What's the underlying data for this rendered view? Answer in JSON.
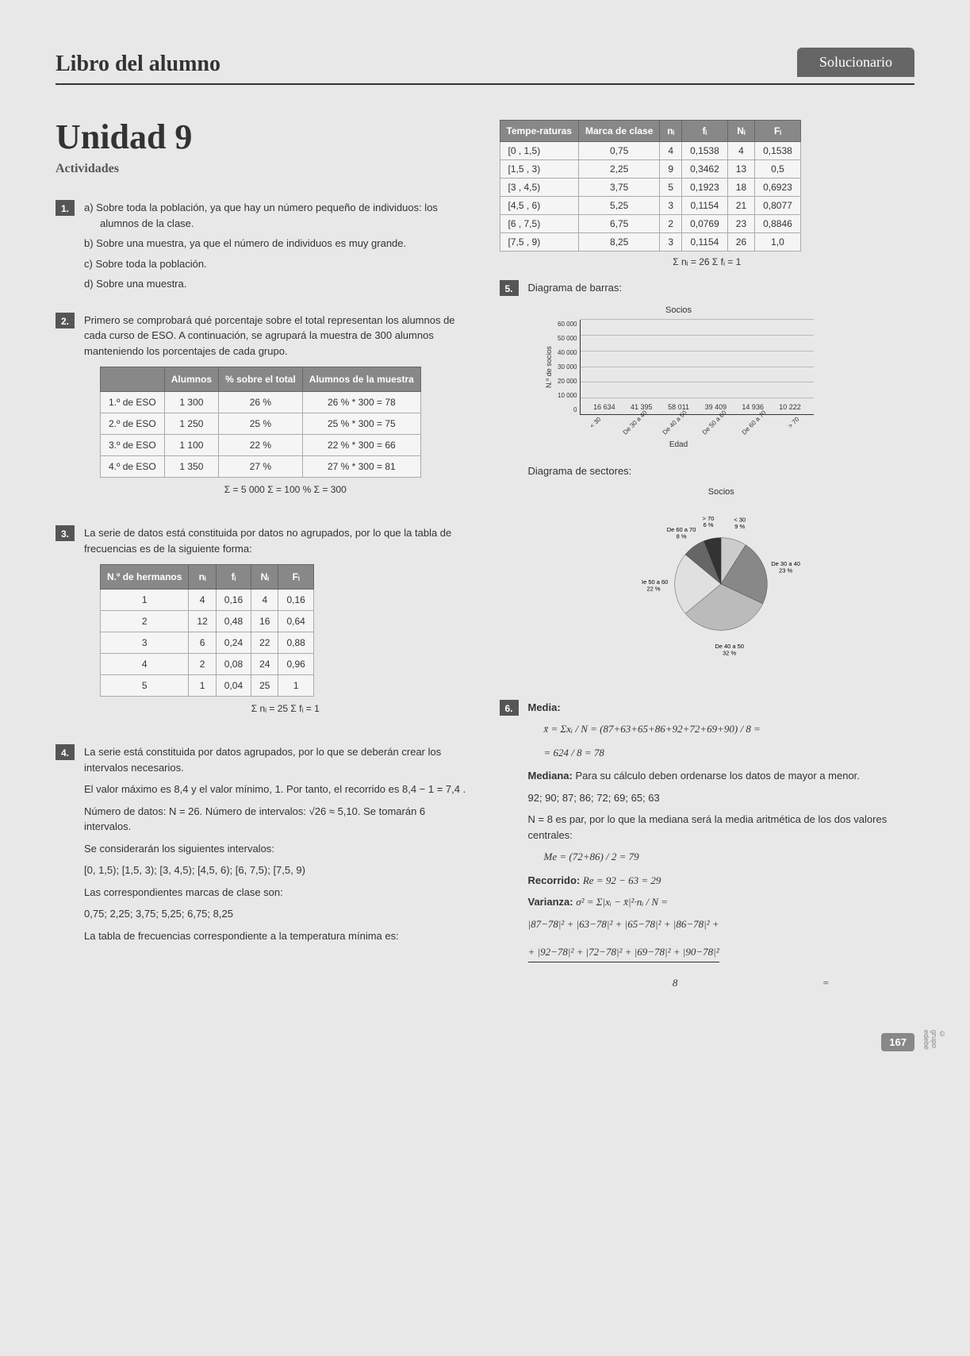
{
  "header": {
    "title": "Libro del alumno",
    "badge": "Solucionario"
  },
  "unit": {
    "title": "Unidad 9",
    "subtitle": "Actividades"
  },
  "ex1": {
    "num": "1.",
    "a": "a) Sobre toda la población, ya que hay un número pequeño de individuos: los alumnos de la clase.",
    "b": "b) Sobre una muestra, ya que el número de individuos es muy grande.",
    "c": "c) Sobre toda la población.",
    "d": "d) Sobre una muestra."
  },
  "ex2": {
    "num": "2.",
    "intro": "Primero se comprobará qué porcentaje sobre el total representan los alumnos de cada curso de ESO. A continuación, se agrupará la muestra de 300 alumnos manteniendo los porcentajes de cada grupo.",
    "table": {
      "headers": [
        "",
        "Alumnos",
        "% sobre el total",
        "Alumnos de la muestra"
      ],
      "rows": [
        [
          "1.º de ESO",
          "1 300",
          "26 %",
          "26 % * 300 = 78"
        ],
        [
          "2.º de ESO",
          "1 250",
          "25 %",
          "25 % * 300 = 75"
        ],
        [
          "3.º de ESO",
          "1 100",
          "22 %",
          "22 % * 300 = 66"
        ],
        [
          "4.º de ESO",
          "1 350",
          "27 %",
          "27 % * 300 = 81"
        ]
      ],
      "sum": "Σ = 5 000  Σ = 100 %        Σ = 300"
    }
  },
  "ex3": {
    "num": "3.",
    "intro": "La serie de datos está constituida por datos no agrupados, por lo que la tabla de frecuencias es de la siguiente forma:",
    "table": {
      "headers": [
        "N.º de hermanos",
        "nᵢ",
        "fᵢ",
        "Nᵢ",
        "Fᵢ"
      ],
      "rows": [
        [
          "1",
          "4",
          "0,16",
          "4",
          "0,16"
        ],
        [
          "2",
          "12",
          "0,48",
          "16",
          "0,64"
        ],
        [
          "3",
          "6",
          "0,24",
          "22",
          "0,88"
        ],
        [
          "4",
          "2",
          "0,08",
          "24",
          "0,96"
        ],
        [
          "5",
          "1",
          "0,04",
          "25",
          "1"
        ]
      ],
      "sum": "Σ nᵢ = 25   Σ fᵢ = 1"
    }
  },
  "ex4": {
    "num": "4.",
    "p1": "La serie está constituida por datos agrupados, por lo que se deberán crear los intervalos necesarios.",
    "p2": "El valor máximo es 8,4 y el valor mínimo, 1. Por tanto, el recorrido es  8,4 − 1 = 7,4 .",
    "p3": "Número de datos: N = 26. Número de intervalos: √26 ≈ 5,10. Se tomarán 6 intervalos.",
    "p4": "Se considerarán los siguientes intervalos:",
    "p5": "[0, 1,5); [1,5, 3); [3, 4,5); [4,5, 6); [6, 7,5); [7,5, 9)",
    "p6": "Las correspondientes marcas de clase son:",
    "p7": "0,75; 2,25; 3,75; 5,25; 6,75; 8,25",
    "p8": "La tabla de frecuencias correspondiente a la temperatura mínima es:"
  },
  "temp_table": {
    "headers": [
      "Tempe-raturas",
      "Marca de clase",
      "nᵢ",
      "fᵢ",
      "Nᵢ",
      "Fᵢ"
    ],
    "rows": [
      [
        "[0 , 1,5)",
        "0,75",
        "4",
        "0,1538",
        "4",
        "0,1538"
      ],
      [
        "[1,5 , 3)",
        "2,25",
        "9",
        "0,3462",
        "13",
        "0,5"
      ],
      [
        "[3 , 4,5)",
        "3,75",
        "5",
        "0,1923",
        "18",
        "0,6923"
      ],
      [
        "[4,5 , 6)",
        "5,25",
        "3",
        "0,1154",
        "21",
        "0,8077"
      ],
      [
        "[6 , 7,5)",
        "6,75",
        "2",
        "0,0769",
        "23",
        "0,8846"
      ],
      [
        "[7,5 , 9)",
        "8,25",
        "3",
        "0,1154",
        "26",
        "1,0"
      ]
    ],
    "sum": "Σ nᵢ = 26  Σ fᵢ = 1"
  },
  "ex5": {
    "num": "5.",
    "bar_label": "Diagrama de barras:",
    "bar_chart": {
      "title": "Socios",
      "ylabel": "N.º de socios",
      "xlabel": "Edad",
      "y_ticks": [
        "60 000",
        "50 000",
        "40 000",
        "30 000",
        "20 000",
        "10 000",
        "0"
      ],
      "y_max": 60000,
      "categories": [
        "< 30",
        "De 30 a 40",
        "De 40 a 50",
        "De 50 a 60",
        "De 60 a 70",
        "> 70"
      ],
      "values": [
        16634,
        41395,
        58011,
        39409,
        14936,
        10222
      ],
      "bar_color": "#999999",
      "grid_color": "#bbbbbb"
    },
    "pie_label": "Diagrama de sectores:",
    "pie_chart": {
      "title": "Socios",
      "slices": [
        {
          "label": "< 30",
          "sublabel": "9 %",
          "pct": 9,
          "color": "#cccccc"
        },
        {
          "label": "De 30 a 40",
          "sublabel": "23 %",
          "pct": 23,
          "color": "#888888"
        },
        {
          "label": "De 40 a 50",
          "sublabel": "32 %",
          "pct": 32,
          "color": "#bbbbbb"
        },
        {
          "label": "De 50 a 60",
          "sublabel": "22 %",
          "pct": 22,
          "color": "#e0e0e0"
        },
        {
          "label": "De 60 a 70",
          "sublabel": "8 %",
          "pct": 8,
          "color": "#666666"
        },
        {
          "label": "> 70",
          "sublabel": "6 %",
          "pct": 6,
          "color": "#333333"
        }
      ]
    }
  },
  "ex6": {
    "num": "6.",
    "media_label": "Media:",
    "media_formula1": "x̄ = Σxᵢ / N = (87+63+65+86+92+72+69+90) / 8 =",
    "media_formula2": "= 624 / 8 = 78",
    "mediana_label": "Mediana:",
    "mediana_text": "Para su cálculo deben ordenarse los datos de mayor a menor.",
    "mediana_sorted": "92; 90; 87; 86; 72; 69; 65; 63",
    "mediana_n": "N = 8 es par, por lo que la mediana será la media aritmética de los dos valores centrales:",
    "mediana_formula": "Me = (72+86) / 2 = 79",
    "recorrido_label": "Recorrido:",
    "recorrido_formula": "Re = 92 − 63 = 29",
    "varianza_label": "Varianza:",
    "varianza_formula1": "σ² = Σ|xᵢ − x̄|²·nᵢ / N =",
    "varianza_formula2": "|87−78|² + |63−78|² + |65−78|² + |86−78|² +",
    "varianza_formula3": "+ |92−78|² + |72−78|² + |69−78|² + |90−78|²",
    "varianza_formula4": "────────────────────────────────── =",
    "varianza_den": "8"
  },
  "footer": {
    "page": "167",
    "copyright": "© grupo edebé"
  }
}
